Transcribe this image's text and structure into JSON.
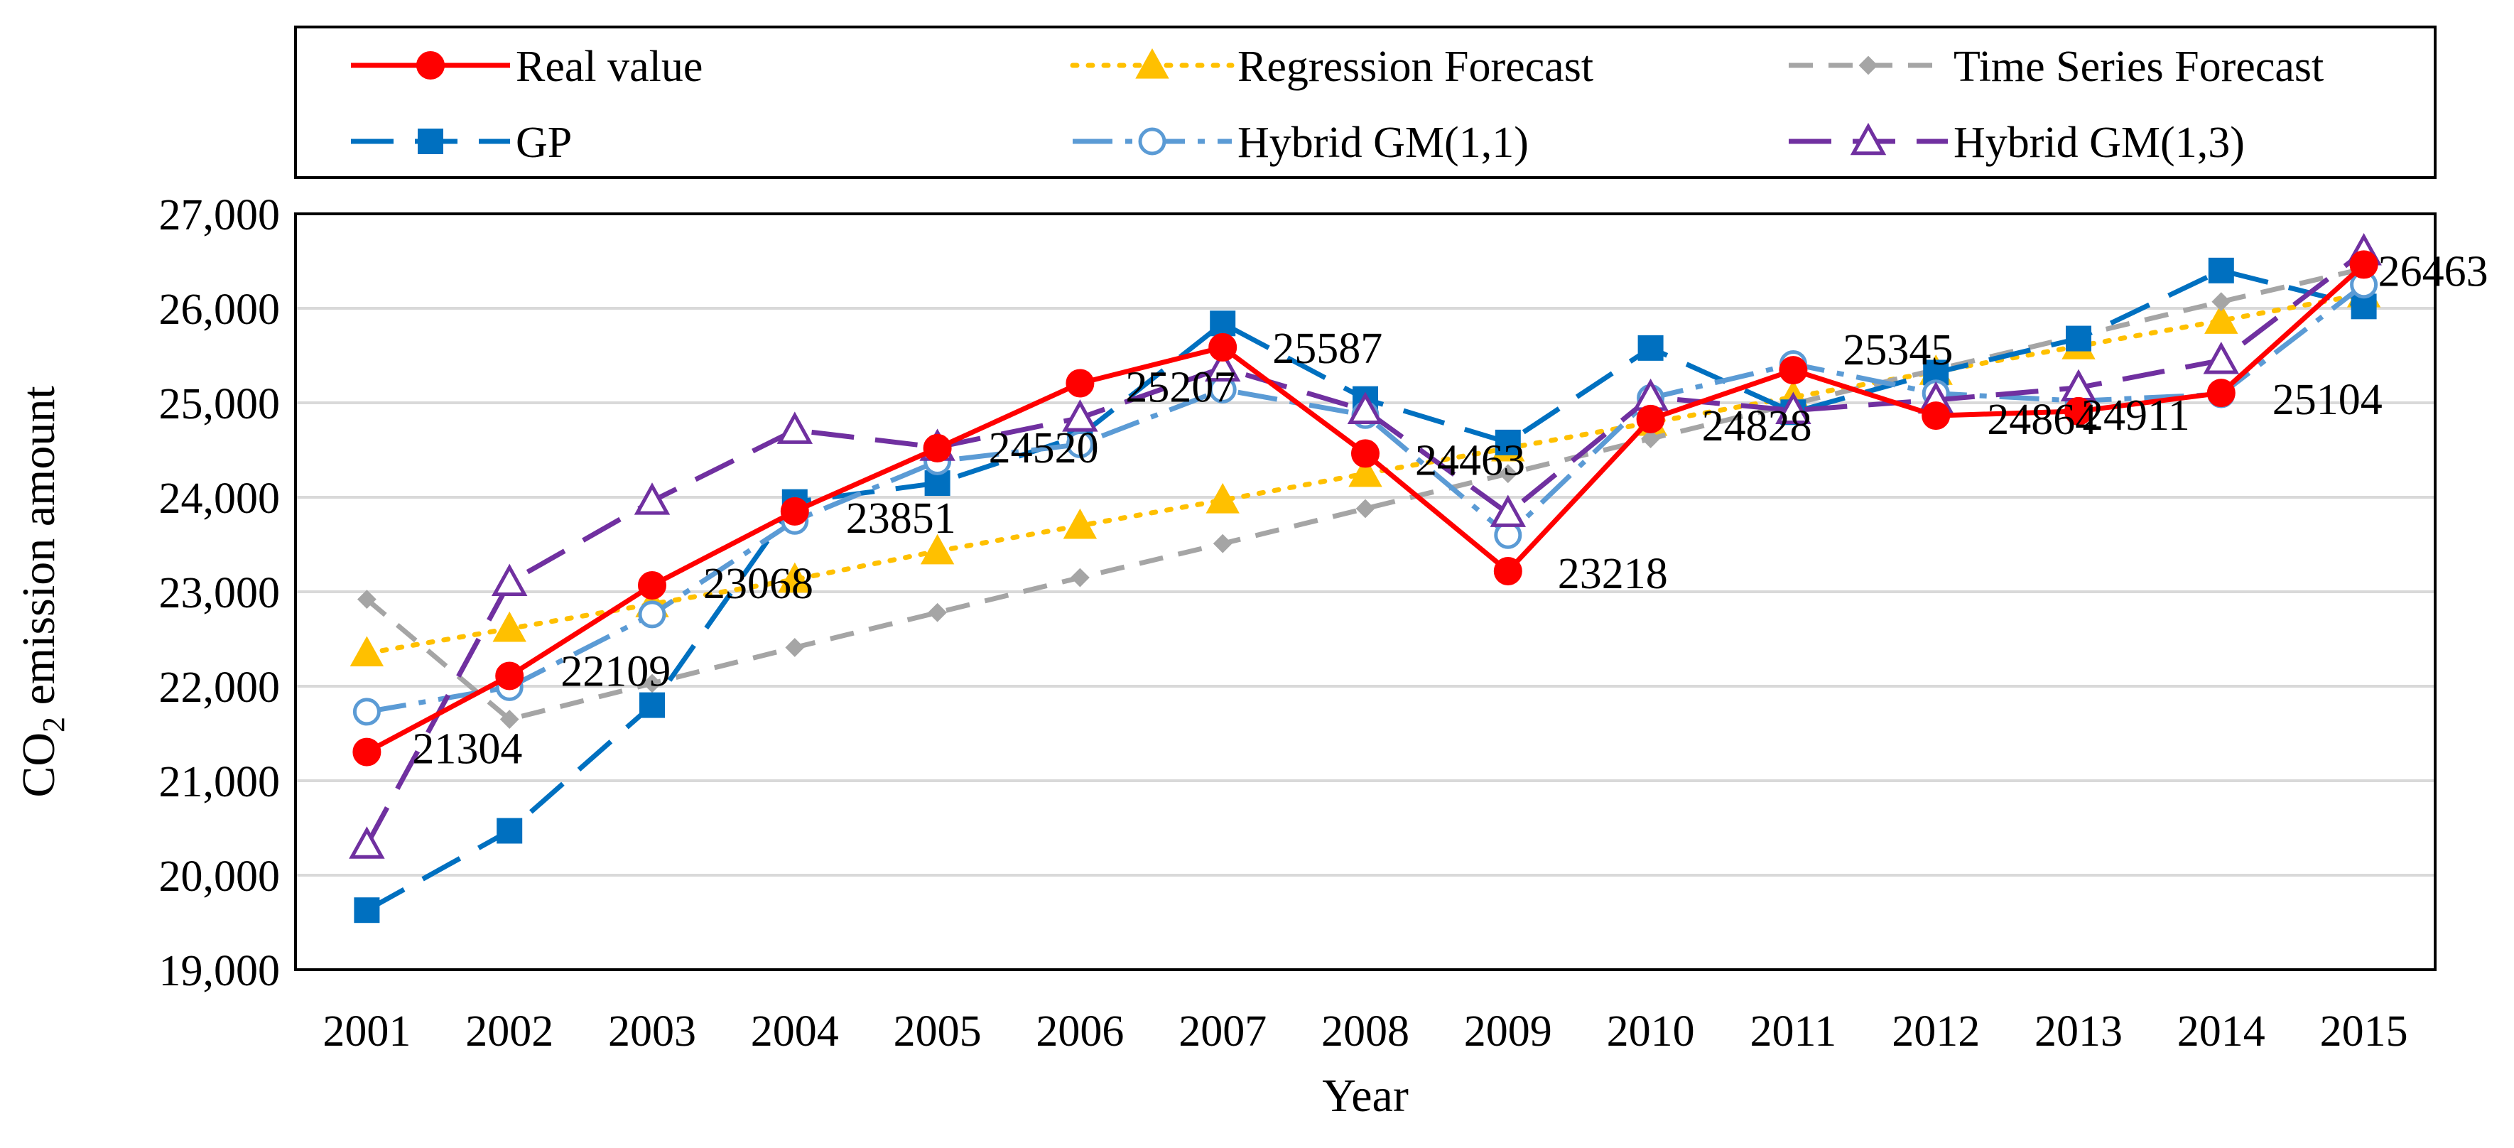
{
  "chart_data": {
    "type": "line",
    "title": "",
    "xlabel": "Year",
    "ylabel_main": "CO",
    "ylabel_sub": "2",
    "ylabel_rest": " emission amount",
    "ylim": [
      19000,
      27000
    ],
    "y_tick_values": [
      19000,
      20000,
      21000,
      22000,
      23000,
      24000,
      25000,
      26000,
      27000
    ],
    "y_tick_labels": [
      "19,000",
      "20,000",
      "21,000",
      "22,000",
      "23,000",
      "24,000",
      "25,000",
      "26,000",
      "27,000"
    ],
    "grid": true,
    "legend_position": "top",
    "categories": [
      "2001",
      "2002",
      "2003",
      "2004",
      "2005",
      "2006",
      "2007",
      "2008",
      "2009",
      "2010",
      "2011",
      "2012",
      "2013",
      "2014",
      "2015"
    ],
    "series": [
      {
        "name": "Real value",
        "color": "#ff0000",
        "dash": "solid",
        "marker": "circle-filled",
        "values": [
          21304,
          22109,
          23068,
          23851,
          24520,
          25207,
          25587,
          24463,
          23218,
          24828,
          25345,
          24864,
          24911,
          25104,
          26463
        ],
        "data_labels": [
          "21304",
          "22109",
          "23068",
          "23851",
          "24520",
          "25207",
          "25587",
          "24463",
          "23218",
          "24828",
          "25345",
          "24864",
          "24911",
          "25104",
          "26463"
        ]
      },
      {
        "name": "Regression Forecast",
        "color": "#ffc000",
        "dash": "dot",
        "marker": "triangle-filled",
        "values": [
          22350,
          22610,
          22870,
          23130,
          23430,
          23700,
          23970,
          24250,
          24520,
          24790,
          25060,
          25330,
          25600,
          25870,
          26150
        ]
      },
      {
        "name": "Time Series Forecast",
        "color": "#a5a5a5",
        "dash": "dash",
        "marker": "diamond-filled",
        "values": [
          22920,
          21650,
          22030,
          22410,
          22780,
          23150,
          23510,
          23880,
          24250,
          24620,
          24990,
          25350,
          25710,
          26070,
          26420
        ]
      },
      {
        "name": "GP",
        "color": "#0070c0",
        "dash": "longdash",
        "marker": "square-filled",
        "values": [
          19630,
          20470,
          21800,
          23950,
          24150,
          24650,
          25840,
          25040,
          24580,
          25580,
          24900,
          25320,
          25680,
          26400,
          26020
        ]
      },
      {
        "name": "Hybrid GM(1,1)",
        "color": "#5b9bd5",
        "dash": "dashdot",
        "marker": "circle-open",
        "values": [
          21730,
          21990,
          22760,
          23750,
          24380,
          24560,
          25140,
          24870,
          23600,
          25050,
          25410,
          25100,
          25020,
          25090,
          26250
        ]
      },
      {
        "name": "Hybrid GM(1,3)",
        "color": "#7030a0",
        "dash": "longdash",
        "marker": "triangle-open",
        "values": [
          20320,
          23100,
          23960,
          24710,
          24530,
          24840,
          25370,
          24920,
          23830,
          25060,
          24920,
          25030,
          25160,
          25450,
          26600
        ]
      }
    ]
  }
}
